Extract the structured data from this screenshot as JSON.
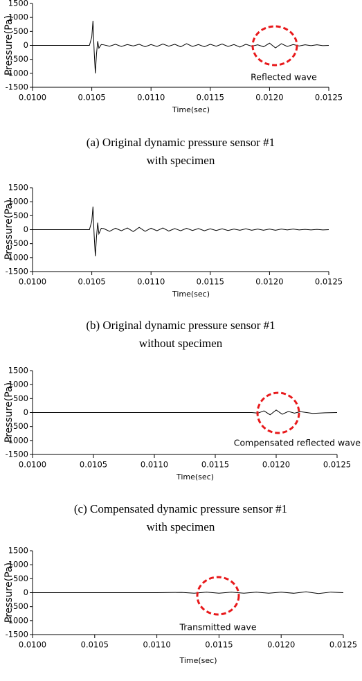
{
  "chart_data": [
    {
      "type": "line",
      "x_label": "Time(sec)",
      "y_label": "Pressure(Pa)",
      "annotation": "Reflected wave",
      "caption": [
        "(a) Original dynamic pressure sensor #1",
        "with specimen"
      ],
      "x": [
        0.01,
        0.0102,
        0.0104,
        0.01048,
        0.0105,
        0.01051,
        0.01052,
        0.01053,
        0.01054,
        0.01055,
        0.01056,
        0.01058,
        0.0106,
        0.01065,
        0.0107,
        0.01075,
        0.0108,
        0.01085,
        0.0109,
        0.01095,
        0.011,
        0.01105,
        0.0111,
        0.01115,
        0.0112,
        0.01125,
        0.0113,
        0.01135,
        0.0114,
        0.01145,
        0.0115,
        0.01155,
        0.0116,
        0.01165,
        0.0117,
        0.01175,
        0.0118,
        0.01185,
        0.0119,
        0.01195,
        0.012,
        0.01205,
        0.0121,
        0.01215,
        0.0122,
        0.01225,
        0.0123,
        0.01235,
        0.0124,
        0.01245,
        0.0125
      ],
      "values": [
        0,
        0,
        0,
        0,
        300,
        880,
        -200,
        -1000,
        -300,
        150,
        -100,
        30,
        20,
        -30,
        40,
        -40,
        30,
        -20,
        40,
        -50,
        30,
        -40,
        50,
        -30,
        40,
        -50,
        60,
        -40,
        30,
        -50,
        40,
        -30,
        50,
        -40,
        30,
        -60,
        40,
        -30,
        20,
        -50,
        80,
        -90,
        60,
        -40,
        30,
        -20,
        20,
        -10,
        20,
        -10,
        0
      ],
      "color": "#000000",
      "xlim": [
        0.01,
        0.0125
      ],
      "xticks": [
        {
          "value": 0.01,
          "label": "0.0100"
        },
        {
          "value": 0.0105,
          "label": "0.0105"
        },
        {
          "value": 0.011,
          "label": "0.0110"
        },
        {
          "value": 0.0115,
          "label": "0.0115"
        },
        {
          "value": 0.012,
          "label": "0.0120"
        },
        {
          "value": 0.0125,
          "label": "0.0125"
        }
      ],
      "ylim": [
        -1500,
        1500
      ],
      "yticks": [
        1500,
        1000,
        500,
        0,
        -500,
        -1000,
        -1500
      ]
    },
    {
      "type": "line",
      "x_label": "Time(sec)",
      "y_label": "Pressure(Pa)",
      "caption": [
        "(b) Original dynamic pressure sensor #1",
        "without specimen"
      ],
      "x": [
        0.01,
        0.0102,
        0.0104,
        0.01048,
        0.0105,
        0.01051,
        0.01052,
        0.01053,
        0.01054,
        0.01055,
        0.01056,
        0.01058,
        0.0106,
        0.01065,
        0.0107,
        0.01075,
        0.0108,
        0.01085,
        0.0109,
        0.01095,
        0.011,
        0.01105,
        0.0111,
        0.01115,
        0.0112,
        0.01125,
        0.0113,
        0.01135,
        0.0114,
        0.01145,
        0.0115,
        0.01155,
        0.0116,
        0.01165,
        0.0117,
        0.01175,
        0.0118,
        0.01185,
        0.0119,
        0.01195,
        0.012,
        0.01205,
        0.0121,
        0.01215,
        0.0122,
        0.01225,
        0.0123,
        0.01235,
        0.0124,
        0.01245,
        0.0125
      ],
      "values": [
        0,
        0,
        0,
        0,
        300,
        820,
        -200,
        -950,
        -250,
        250,
        -150,
        50,
        40,
        -60,
        50,
        -40,
        60,
        -70,
        80,
        -60,
        50,
        -40,
        60,
        -50,
        40,
        -40,
        50,
        -30,
        40,
        -40,
        30,
        -30,
        30,
        -30,
        20,
        -20,
        30,
        -20,
        20,
        -20,
        20,
        -20,
        20,
        -10,
        20,
        -10,
        10,
        -10,
        10,
        -10,
        0
      ],
      "color": "#000000",
      "xlim": [
        0.01,
        0.0125
      ],
      "xticks": [
        {
          "value": 0.01,
          "label": "0.0100"
        },
        {
          "value": 0.0105,
          "label": "0.0105"
        },
        {
          "value": 0.011,
          "label": "0.0110"
        },
        {
          "value": 0.0115,
          "label": "0.0115"
        },
        {
          "value": 0.012,
          "label": "0.0120"
        },
        {
          "value": 0.0125,
          "label": "0.0125"
        }
      ],
      "ylim": [
        -1500,
        1500
      ],
      "yticks": [
        1500,
        1000,
        500,
        0,
        -500,
        -1000,
        -1500
      ]
    },
    {
      "type": "line",
      "x_label": "Time(sec)",
      "y_label": "Pressure(Pa)",
      "annotation": "Compensated reflected wave",
      "caption": [
        "(c) Compensated dynamic pressure sensor #1",
        "with specimen"
      ],
      "x": [
        0.01,
        0.0105,
        0.011,
        0.0115,
        0.0118,
        0.01185,
        0.0119,
        0.01195,
        0.012,
        0.01205,
        0.0121,
        0.01215,
        0.0122,
        0.0123,
        0.0124,
        0.0125
      ],
      "values": [
        0,
        0,
        0,
        0,
        0,
        -20,
        60,
        -80,
        90,
        -60,
        40,
        -20,
        30,
        -30,
        -10,
        0
      ],
      "color": "#000000",
      "xlim": [
        0.01,
        0.0125
      ],
      "xticks": [
        {
          "value": 0.01,
          "label": "0.0100"
        },
        {
          "value": 0.0105,
          "label": "0.0105"
        },
        {
          "value": 0.011,
          "label": "0.0110"
        },
        {
          "value": 0.0115,
          "label": "0.0115"
        },
        {
          "value": 0.012,
          "label": "0.0120"
        },
        {
          "value": 0.0125,
          "label": "0.0125"
        }
      ],
      "ylim": [
        -1500,
        1500
      ],
      "yticks": [
        1500,
        1000,
        500,
        0,
        -500,
        -1000,
        -1500
      ]
    },
    {
      "type": "line",
      "x_label": "Time(sec)",
      "y_label": "Pressure(Pa)",
      "annotation": "Transmitted wave",
      "x": [
        0.01,
        0.0105,
        0.011,
        0.0112,
        0.0113,
        0.0114,
        0.0115,
        0.0116,
        0.0117,
        0.0118,
        0.0119,
        0.012,
        0.0121,
        0.0122,
        0.0123,
        0.0124,
        0.0125
      ],
      "values": [
        0,
        0,
        0,
        10,
        -20,
        20,
        -20,
        20,
        -20,
        20,
        -20,
        20,
        -20,
        30,
        -30,
        20,
        0
      ],
      "color": "#000000",
      "xlim": [
        0.01,
        0.0125
      ],
      "xticks": [
        {
          "value": 0.01,
          "label": "0.0100"
        },
        {
          "value": 0.0105,
          "label": "0.0105"
        },
        {
          "value": 0.011,
          "label": "0.0110"
        },
        {
          "value": 0.0115,
          "label": "0.0115"
        },
        {
          "value": 0.012,
          "label": "0.0120"
        },
        {
          "value": 0.0125,
          "label": "0.0125"
        }
      ],
      "ylim": [
        -1500,
        1500
      ],
      "yticks": [
        1500,
        1000,
        500,
        0,
        -500,
        -1000,
        -1500
      ]
    }
  ]
}
